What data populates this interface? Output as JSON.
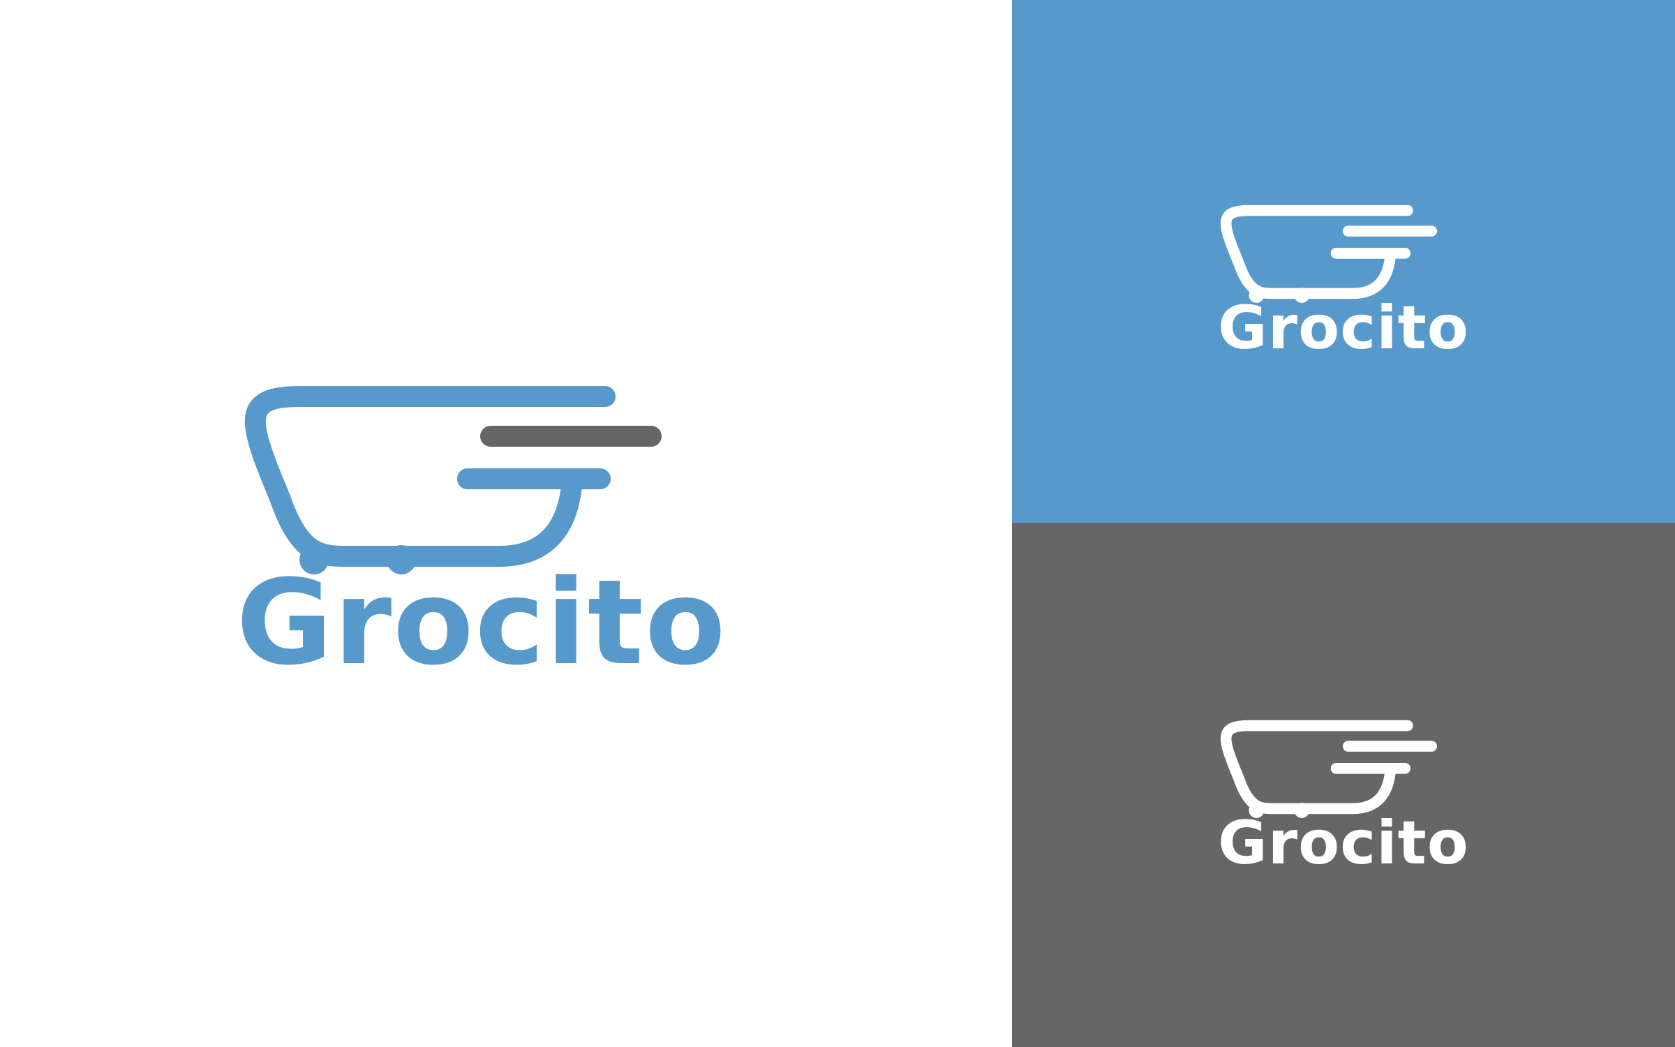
{
  "brand": {
    "name": "Grocito"
  },
  "colors": {
    "brand_blue": "#5899cc",
    "brand_gray": "#666666",
    "background_white": "#ffffff",
    "reversed_white": "#ffffff"
  },
  "variants": [
    {
      "background": "#ffffff",
      "cart_color": "#5899cc",
      "middle_bar_color": "#666666",
      "text_color": "#5899cc"
    },
    {
      "background": "#5899cc",
      "cart_color": "#ffffff",
      "middle_bar_color": "#ffffff",
      "text_color": "#ffffff"
    },
    {
      "background": "#666666",
      "cart_color": "#ffffff",
      "middle_bar_color": "#ffffff",
      "text_color": "#ffffff"
    }
  ],
  "icons": {
    "logo_mark": "shopping-cart-icon"
  }
}
